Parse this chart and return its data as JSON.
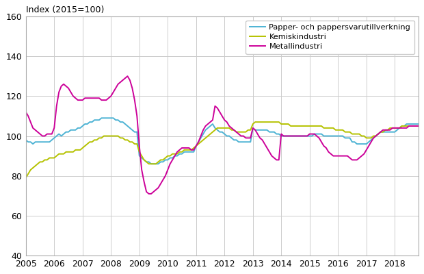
{
  "title": "Index (2015=100)",
  "ylim": [
    40,
    160
  ],
  "yticks": [
    40,
    60,
    80,
    100,
    120,
    140,
    160
  ],
  "xlim_start": 2005.0,
  "xlim_end": 2018.83,
  "xtick_years": [
    2005,
    2006,
    2007,
    2008,
    2009,
    2010,
    2011,
    2012,
    2013,
    2014,
    2015,
    2016,
    2017,
    2018
  ],
  "legend_labels": [
    "Papper- och pappersvarutillverkning",
    "Kemiskindustri",
    "Metallindustri"
  ],
  "line_colors": [
    "#4db3d4",
    "#b5c200",
    "#cc0099"
  ],
  "line_width": 1.4,
  "grid_color": "#cccccc",
  "background_color": "#ffffff",
  "series_papper": [
    98,
    97,
    97,
    96,
    97,
    97,
    97,
    97,
    97,
    97,
    97,
    98,
    99,
    100,
    101,
    100,
    101,
    102,
    102,
    103,
    103,
    103,
    104,
    104,
    105,
    106,
    106,
    107,
    107,
    108,
    108,
    108,
    109,
    109,
    109,
    109,
    109,
    109,
    108,
    108,
    107,
    107,
    106,
    105,
    104,
    103,
    102,
    102,
    90,
    89,
    88,
    87,
    87,
    86,
    86,
    86,
    86,
    87,
    87,
    88,
    88,
    89,
    89,
    90,
    90,
    91,
    91,
    92,
    92,
    92,
    92,
    92,
    95,
    97,
    99,
    101,
    103,
    104,
    105,
    106,
    104,
    103,
    102,
    102,
    101,
    100,
    100,
    99,
    98,
    98,
    97,
    97,
    97,
    97,
    97,
    97,
    104,
    103,
    103,
    103,
    103,
    103,
    103,
    102,
    102,
    102,
    101,
    101,
    100,
    100,
    100,
    100,
    100,
    100,
    100,
    100,
    100,
    100,
    100,
    100,
    100,
    100,
    101,
    101,
    101,
    101,
    100,
    100,
    100,
    100,
    100,
    100,
    100,
    100,
    100,
    99,
    99,
    99,
    97,
    97,
    96,
    96,
    96,
    96,
    96,
    97,
    98,
    99,
    100,
    101,
    102,
    102,
    102,
    102,
    102,
    102,
    102,
    103,
    104,
    105,
    105,
    106,
    106,
    106,
    106,
    106,
    106,
    106
  ],
  "series_kemisk": [
    79,
    81,
    83,
    84,
    85,
    86,
    87,
    87,
    88,
    88,
    89,
    89,
    89,
    90,
    91,
    91,
    91,
    92,
    92,
    92,
    92,
    93,
    93,
    93,
    94,
    95,
    96,
    97,
    97,
    98,
    98,
    99,
    99,
    100,
    100,
    100,
    100,
    100,
    100,
    100,
    99,
    99,
    98,
    98,
    97,
    97,
    96,
    96,
    92,
    90,
    88,
    87,
    86,
    86,
    86,
    86,
    87,
    88,
    88,
    89,
    90,
    90,
    91,
    91,
    91,
    92,
    92,
    93,
    93,
    93,
    93,
    94,
    95,
    96,
    97,
    98,
    99,
    100,
    101,
    102,
    103,
    104,
    104,
    104,
    104,
    104,
    104,
    103,
    103,
    102,
    102,
    102,
    102,
    102,
    103,
    103,
    106,
    107,
    107,
    107,
    107,
    107,
    107,
    107,
    107,
    107,
    107,
    107,
    106,
    106,
    106,
    106,
    105,
    105,
    105,
    105,
    105,
    105,
    105,
    105,
    105,
    105,
    105,
    105,
    105,
    105,
    104,
    104,
    104,
    104,
    104,
    103,
    103,
    103,
    103,
    102,
    102,
    102,
    101,
    101,
    101,
    101,
    100,
    100,
    99,
    99,
    99,
    100,
    100,
    101,
    102,
    102,
    103,
    103,
    104,
    104,
    104,
    104,
    104,
    105,
    105,
    105,
    105,
    105,
    105,
    105,
    105,
    105
  ],
  "series_metall": [
    112,
    110,
    107,
    104,
    103,
    102,
    101,
    100,
    100,
    101,
    101,
    101,
    104,
    115,
    122,
    125,
    126,
    125,
    124,
    122,
    120,
    119,
    118,
    118,
    118,
    119,
    119,
    119,
    119,
    119,
    119,
    119,
    118,
    118,
    118,
    119,
    120,
    122,
    124,
    126,
    127,
    128,
    129,
    130,
    128,
    124,
    118,
    110,
    95,
    83,
    77,
    72,
    71,
    71,
    72,
    73,
    74,
    76,
    78,
    80,
    83,
    86,
    88,
    90,
    92,
    93,
    94,
    94,
    94,
    94,
    93,
    93,
    95,
    97,
    100,
    103,
    105,
    106,
    107,
    108,
    115,
    114,
    112,
    110,
    108,
    107,
    105,
    104,
    103,
    102,
    101,
    100,
    100,
    99,
    99,
    99,
    104,
    103,
    101,
    99,
    98,
    96,
    94,
    92,
    90,
    89,
    88,
    88,
    101,
    100,
    100,
    100,
    100,
    100,
    100,
    100,
    100,
    100,
    100,
    100,
    101,
    101,
    101,
    100,
    99,
    97,
    95,
    94,
    92,
    91,
    90,
    90,
    90,
    90,
    90,
    90,
    90,
    89,
    88,
    88,
    88,
    89,
    90,
    91,
    93,
    95,
    97,
    99,
    100,
    101,
    102,
    103,
    103,
    103,
    103,
    104,
    104,
    104,
    104,
    104,
    104,
    104,
    105,
    105,
    105,
    105,
    105,
    105
  ],
  "start_year": 2005,
  "n_months": 168
}
